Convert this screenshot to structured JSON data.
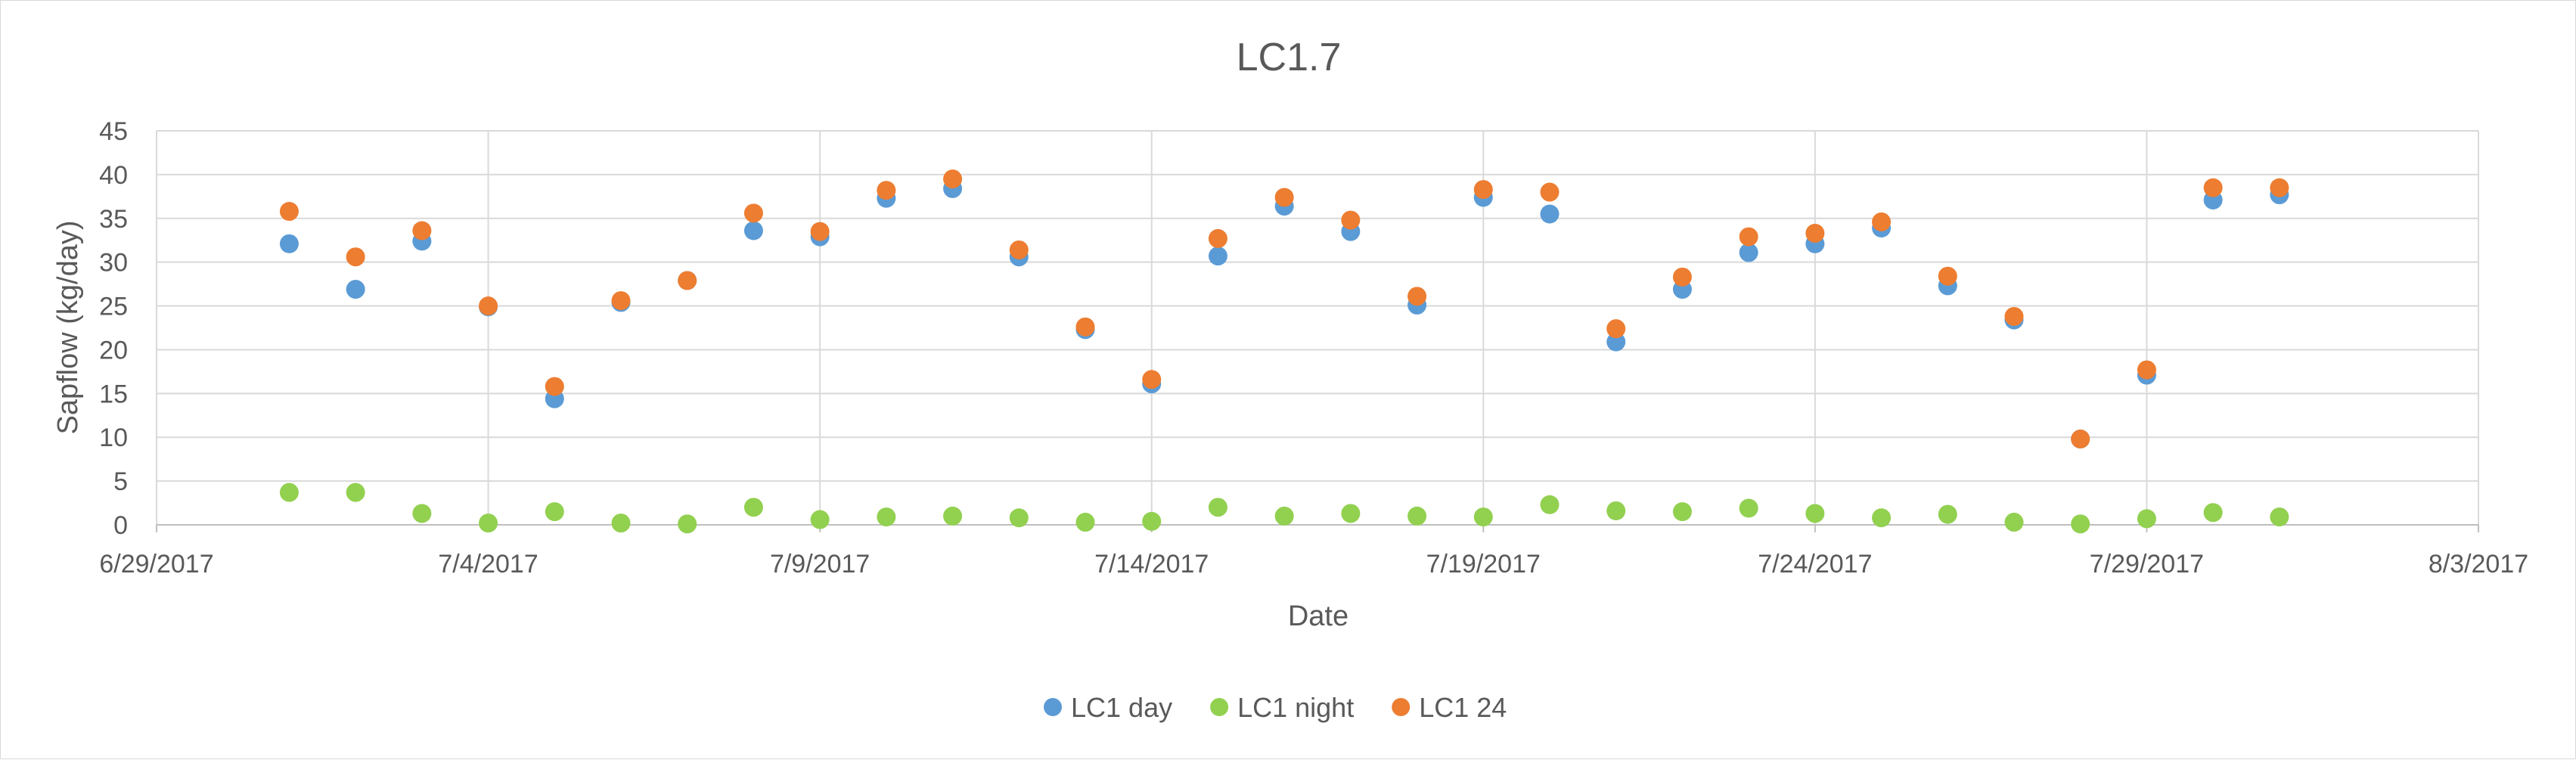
{
  "chart_data": {
    "type": "scatter",
    "title": "LC1.7",
    "xlabel": "Date",
    "ylabel": "Sapflow (kg/day)",
    "x_axis": {
      "type": "date",
      "min": "2017-06-29",
      "max": "2017-08-03",
      "major_unit_days": 5,
      "tick_labels": [
        "6/29/2017",
        "7/4/2017",
        "7/9/2017",
        "7/14/2017",
        "7/19/2017",
        "7/24/2017",
        "7/29/2017",
        "8/3/2017"
      ]
    },
    "y_axis": {
      "min": 0,
      "max": 45,
      "major_unit": 5,
      "tick_labels": [
        "0",
        "5",
        "10",
        "15",
        "20",
        "25",
        "30",
        "35",
        "40",
        "45"
      ]
    },
    "grid": true,
    "legend_position": "bottom",
    "dates": [
      "2017-07-01",
      "2017-07-02",
      "2017-07-03",
      "2017-07-04",
      "2017-07-05",
      "2017-07-06",
      "2017-07-07",
      "2017-07-08",
      "2017-07-09",
      "2017-07-10",
      "2017-07-11",
      "2017-07-12",
      "2017-07-13",
      "2017-07-14",
      "2017-07-15",
      "2017-07-16",
      "2017-07-17",
      "2017-07-18",
      "2017-07-19",
      "2017-07-20",
      "2017-07-21",
      "2017-07-22",
      "2017-07-23",
      "2017-07-24",
      "2017-07-25",
      "2017-07-26",
      "2017-07-27",
      "2017-07-28",
      "2017-07-29",
      "2017-07-30",
      "2017-07-31"
    ],
    "series": [
      {
        "name": "LC1 day",
        "color": "#5B9BD5",
        "values": [
          32.1,
          26.9,
          32.4,
          24.9,
          14.4,
          25.4,
          27.9,
          33.6,
          32.9,
          37.3,
          38.4,
          30.6,
          22.3,
          16.1,
          30.7,
          36.4,
          33.5,
          25.1,
          37.4,
          35.5,
          20.9,
          26.9,
          31.1,
          32.1,
          33.9,
          27.3,
          23.4,
          9.8,
          17.1,
          37.1,
          37.7
        ]
      },
      {
        "name": "LC1 night",
        "color": "#92D050",
        "values": [
          3.7,
          3.7,
          1.3,
          0.2,
          1.5,
          0.2,
          0.1,
          2.0,
          0.6,
          0.9,
          1.0,
          0.8,
          0.3,
          0.4,
          2.0,
          1.0,
          1.3,
          1.0,
          0.9,
          2.3,
          1.6,
          1.5,
          1.9,
          1.3,
          0.8,
          1.2,
          0.3,
          0.1,
          0.7,
          1.4,
          0.9
        ]
      },
      {
        "name": "LC1 24",
        "color": "#ED7D31",
        "values": [
          35.8,
          30.6,
          33.6,
          25.0,
          15.8,
          25.6,
          27.9,
          35.6,
          33.5,
          38.2,
          39.5,
          31.4,
          22.6,
          16.6,
          32.7,
          37.4,
          34.8,
          26.1,
          38.3,
          38.0,
          22.4,
          28.3,
          32.9,
          33.3,
          34.6,
          28.4,
          23.8,
          9.8,
          17.7,
          38.5,
          38.5
        ]
      }
    ]
  }
}
